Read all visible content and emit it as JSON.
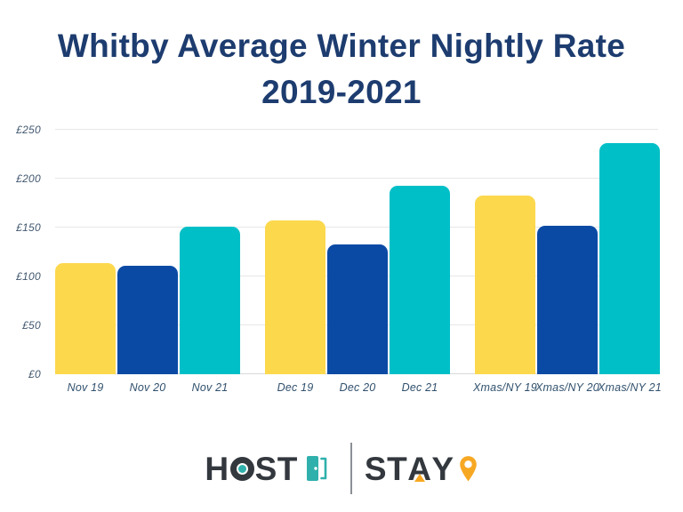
{
  "title": {
    "line1": "Whitby Average Winter Nightly Rate",
    "line2": "2019-2021"
  },
  "chart_data": {
    "type": "bar",
    "categories": [
      "Nov 19",
      "Nov 20",
      "Nov 21",
      "Dec 19",
      "Dec 20",
      "Dec 21",
      "Xmas/NY 19",
      "Xmas/NY 20",
      "Xmas/NY 21"
    ],
    "values": [
      114,
      111,
      151,
      157,
      133,
      193,
      183,
      152,
      236
    ],
    "groups": [
      "November",
      "December",
      "Xmas/New Year"
    ],
    "title": "Whitby Average Winter Nightly Rate 2019-2021",
    "xlabel": "",
    "ylabel": "",
    "ylim": [
      0,
      250
    ],
    "y_ticks": [
      "£0",
      "£50",
      "£100",
      "£150",
      "£200",
      "£250"
    ],
    "y_tick_values": [
      0,
      50,
      100,
      150,
      200,
      250
    ],
    "currency": "£",
    "grid": true,
    "legend": "none",
    "bar_palette": [
      "#FCD84D",
      "#0A4AA5",
      "#00BFC7"
    ],
    "palette_meaning": [
      "2019",
      "2020",
      "2021"
    ]
  },
  "colors": {
    "title_navy": "#1d3c6f",
    "axis_label": "#42586f",
    "gridline": "#e7e7e7",
    "logo_charcoal": "#33383e",
    "logo_teal": "#2fb0ac",
    "logo_orange": "#f7a823",
    "background": "#ffffff"
  },
  "logo": {
    "host_before_o": "H",
    "host_after_o": "ST",
    "stay_before_a": "ST",
    "stay_after_a": "Y"
  }
}
